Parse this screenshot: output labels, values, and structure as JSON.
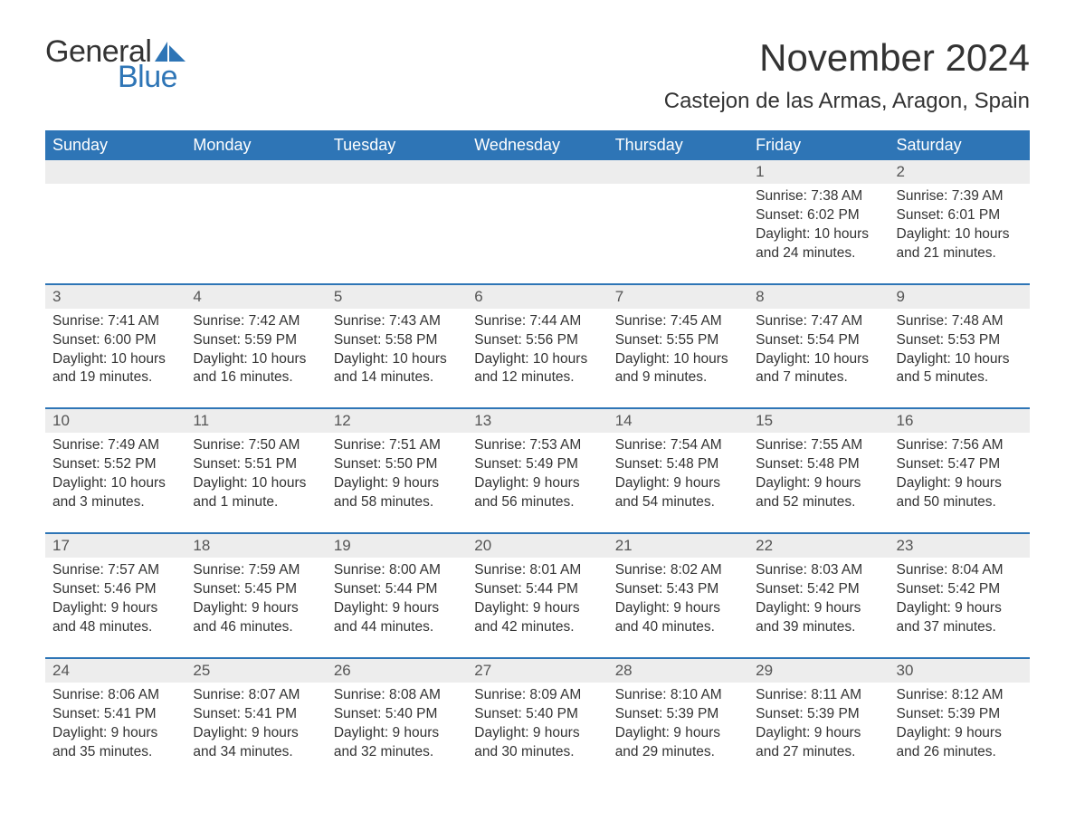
{
  "logo": {
    "text_general": "General",
    "text_blue": "Blue",
    "sail_color": "#2e75b6"
  },
  "title": "November 2024",
  "location": "Castejon de las Armas, Aragon, Spain",
  "colors": {
    "header_bg": "#2e75b6",
    "header_text": "#ffffff",
    "daynum_bg": "#ededed",
    "row_divider": "#2e75b6",
    "body_text": "#333333",
    "background": "#ffffff"
  },
  "day_headers": [
    "Sunday",
    "Monday",
    "Tuesday",
    "Wednesday",
    "Thursday",
    "Friday",
    "Saturday"
  ],
  "weeks": [
    [
      null,
      null,
      null,
      null,
      null,
      {
        "n": "1",
        "sunrise": "Sunrise: 7:38 AM",
        "sunset": "Sunset: 6:02 PM",
        "daylight": "Daylight: 10 hours and 24 minutes."
      },
      {
        "n": "2",
        "sunrise": "Sunrise: 7:39 AM",
        "sunset": "Sunset: 6:01 PM",
        "daylight": "Daylight: 10 hours and 21 minutes."
      }
    ],
    [
      {
        "n": "3",
        "sunrise": "Sunrise: 7:41 AM",
        "sunset": "Sunset: 6:00 PM",
        "daylight": "Daylight: 10 hours and 19 minutes."
      },
      {
        "n": "4",
        "sunrise": "Sunrise: 7:42 AM",
        "sunset": "Sunset: 5:59 PM",
        "daylight": "Daylight: 10 hours and 16 minutes."
      },
      {
        "n": "5",
        "sunrise": "Sunrise: 7:43 AM",
        "sunset": "Sunset: 5:58 PM",
        "daylight": "Daylight: 10 hours and 14 minutes."
      },
      {
        "n": "6",
        "sunrise": "Sunrise: 7:44 AM",
        "sunset": "Sunset: 5:56 PM",
        "daylight": "Daylight: 10 hours and 12 minutes."
      },
      {
        "n": "7",
        "sunrise": "Sunrise: 7:45 AM",
        "sunset": "Sunset: 5:55 PM",
        "daylight": "Daylight: 10 hours and 9 minutes."
      },
      {
        "n": "8",
        "sunrise": "Sunrise: 7:47 AM",
        "sunset": "Sunset: 5:54 PM",
        "daylight": "Daylight: 10 hours and 7 minutes."
      },
      {
        "n": "9",
        "sunrise": "Sunrise: 7:48 AM",
        "sunset": "Sunset: 5:53 PM",
        "daylight": "Daylight: 10 hours and 5 minutes."
      }
    ],
    [
      {
        "n": "10",
        "sunrise": "Sunrise: 7:49 AM",
        "sunset": "Sunset: 5:52 PM",
        "daylight": "Daylight: 10 hours and 3 minutes."
      },
      {
        "n": "11",
        "sunrise": "Sunrise: 7:50 AM",
        "sunset": "Sunset: 5:51 PM",
        "daylight": "Daylight: 10 hours and 1 minute."
      },
      {
        "n": "12",
        "sunrise": "Sunrise: 7:51 AM",
        "sunset": "Sunset: 5:50 PM",
        "daylight": "Daylight: 9 hours and 58 minutes."
      },
      {
        "n": "13",
        "sunrise": "Sunrise: 7:53 AM",
        "sunset": "Sunset: 5:49 PM",
        "daylight": "Daylight: 9 hours and 56 minutes."
      },
      {
        "n": "14",
        "sunrise": "Sunrise: 7:54 AM",
        "sunset": "Sunset: 5:48 PM",
        "daylight": "Daylight: 9 hours and 54 minutes."
      },
      {
        "n": "15",
        "sunrise": "Sunrise: 7:55 AM",
        "sunset": "Sunset: 5:48 PM",
        "daylight": "Daylight: 9 hours and 52 minutes."
      },
      {
        "n": "16",
        "sunrise": "Sunrise: 7:56 AM",
        "sunset": "Sunset: 5:47 PM",
        "daylight": "Daylight: 9 hours and 50 minutes."
      }
    ],
    [
      {
        "n": "17",
        "sunrise": "Sunrise: 7:57 AM",
        "sunset": "Sunset: 5:46 PM",
        "daylight": "Daylight: 9 hours and 48 minutes."
      },
      {
        "n": "18",
        "sunrise": "Sunrise: 7:59 AM",
        "sunset": "Sunset: 5:45 PM",
        "daylight": "Daylight: 9 hours and 46 minutes."
      },
      {
        "n": "19",
        "sunrise": "Sunrise: 8:00 AM",
        "sunset": "Sunset: 5:44 PM",
        "daylight": "Daylight: 9 hours and 44 minutes."
      },
      {
        "n": "20",
        "sunrise": "Sunrise: 8:01 AM",
        "sunset": "Sunset: 5:44 PM",
        "daylight": "Daylight: 9 hours and 42 minutes."
      },
      {
        "n": "21",
        "sunrise": "Sunrise: 8:02 AM",
        "sunset": "Sunset: 5:43 PM",
        "daylight": "Daylight: 9 hours and 40 minutes."
      },
      {
        "n": "22",
        "sunrise": "Sunrise: 8:03 AM",
        "sunset": "Sunset: 5:42 PM",
        "daylight": "Daylight: 9 hours and 39 minutes."
      },
      {
        "n": "23",
        "sunrise": "Sunrise: 8:04 AM",
        "sunset": "Sunset: 5:42 PM",
        "daylight": "Daylight: 9 hours and 37 minutes."
      }
    ],
    [
      {
        "n": "24",
        "sunrise": "Sunrise: 8:06 AM",
        "sunset": "Sunset: 5:41 PM",
        "daylight": "Daylight: 9 hours and 35 minutes."
      },
      {
        "n": "25",
        "sunrise": "Sunrise: 8:07 AM",
        "sunset": "Sunset: 5:41 PM",
        "daylight": "Daylight: 9 hours and 34 minutes."
      },
      {
        "n": "26",
        "sunrise": "Sunrise: 8:08 AM",
        "sunset": "Sunset: 5:40 PM",
        "daylight": "Daylight: 9 hours and 32 minutes."
      },
      {
        "n": "27",
        "sunrise": "Sunrise: 8:09 AM",
        "sunset": "Sunset: 5:40 PM",
        "daylight": "Daylight: 9 hours and 30 minutes."
      },
      {
        "n": "28",
        "sunrise": "Sunrise: 8:10 AM",
        "sunset": "Sunset: 5:39 PM",
        "daylight": "Daylight: 9 hours and 29 minutes."
      },
      {
        "n": "29",
        "sunrise": "Sunrise: 8:11 AM",
        "sunset": "Sunset: 5:39 PM",
        "daylight": "Daylight: 9 hours and 27 minutes."
      },
      {
        "n": "30",
        "sunrise": "Sunrise: 8:12 AM",
        "sunset": "Sunset: 5:39 PM",
        "daylight": "Daylight: 9 hours and 26 minutes."
      }
    ]
  ]
}
